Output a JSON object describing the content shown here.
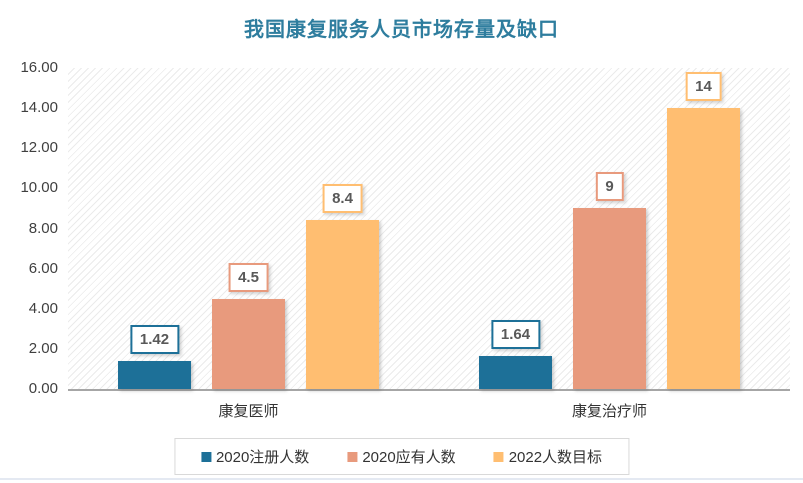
{
  "title": "我国康复服务人员市场存量及缺口",
  "colors": {
    "title_text": "#2E7D9E",
    "axis_text": "#3F3F3F",
    "data_label_text": "#595959",
    "baseline": "#A6A6A6",
    "legend_border": "#D9D9D9",
    "bottom_rule": "#E4E9F2",
    "series_teal": "#1D7098",
    "series_salmon": "#E89A7D",
    "series_orange": "#FFBE71"
  },
  "chart_data": {
    "type": "bar",
    "title": "我国康复服务人员市场存量及缺口",
    "categories": [
      "康复医师",
      "康复治疗师"
    ],
    "series": [
      {
        "name": "2020注册人数",
        "color": "#1D7098",
        "values": [
          1.42,
          1.64
        ],
        "labels": [
          "1.42",
          "1.64"
        ]
      },
      {
        "name": "2020应有人数",
        "color": "#E89A7D",
        "values": [
          4.5,
          9
        ],
        "labels": [
          "4.5",
          "9"
        ]
      },
      {
        "name": "2022人数目标",
        "color": "#FFBE71",
        "values": [
          8.4,
          14
        ],
        "labels": [
          "8.4",
          "14"
        ]
      }
    ],
    "xlabel": "",
    "ylabel": "",
    "ylim": [
      0,
      16
    ],
    "y_ticks": [
      "16.00",
      "14.00",
      "12.00",
      "10.00",
      "8.00",
      "6.00",
      "4.00",
      "2.00",
      "0.00"
    ],
    "grid": false,
    "legend_position": "bottom",
    "plot_background": "diagonal-hatch",
    "data_label_style": "boxed-white-with-series-border"
  }
}
